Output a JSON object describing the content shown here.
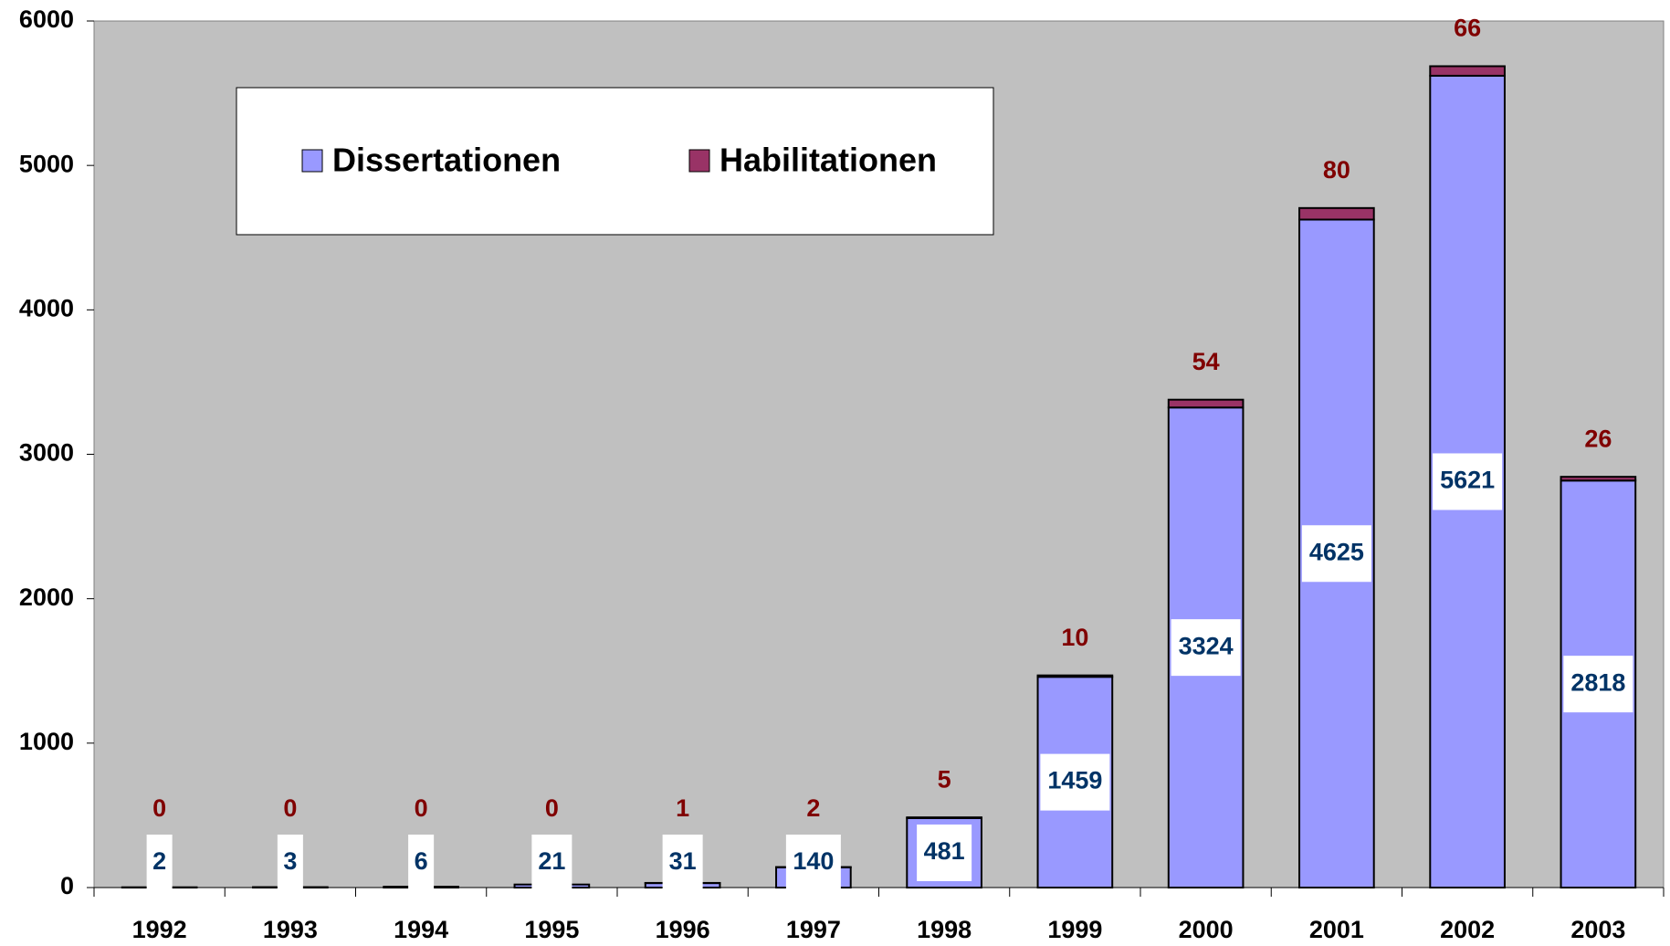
{
  "chart_data": {
    "type": "stacked_bar",
    "categories": [
      "1992",
      "1993",
      "1994",
      "1995",
      "1996",
      "1997",
      "1998",
      "1999",
      "2000",
      "2001",
      "2002",
      "2003"
    ],
    "series": [
      {
        "name": "Dissertationen",
        "color": "#9999ff",
        "label_color": "#003366",
        "values": [
          2,
          3,
          6,
          21,
          31,
          140,
          481,
          1459,
          3324,
          4625,
          5621,
          2818
        ]
      },
      {
        "name": "Habilitationen",
        "color": "#993366",
        "label_color": "#800000",
        "values": [
          0,
          0,
          0,
          0,
          1,
          2,
          5,
          10,
          54,
          80,
          66,
          26
        ]
      }
    ],
    "ylim": [
      0,
      6000
    ],
    "yticks": [
      0,
      1000,
      2000,
      3000,
      4000,
      5000,
      6000
    ]
  }
}
